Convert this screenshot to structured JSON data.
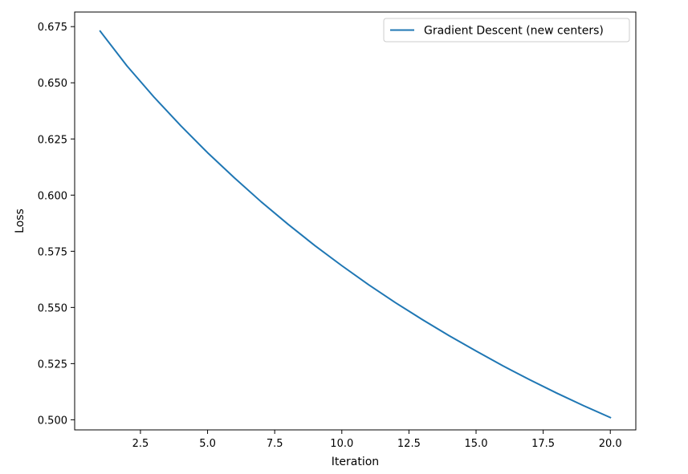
{
  "chart_data": {
    "type": "line",
    "title": "",
    "xlabel": "Iteration",
    "ylabel": "Loss",
    "xlim": [
      0.05,
      20.95
    ],
    "ylim": [
      0.4955,
      0.6815
    ],
    "xticks": [
      2.5,
      5.0,
      7.5,
      10.0,
      12.5,
      15.0,
      17.5,
      20.0
    ],
    "xtick_labels": [
      "2.5",
      "5.0",
      "7.5",
      "10.0",
      "12.5",
      "15.0",
      "17.5",
      "20.0"
    ],
    "yticks": [
      0.5,
      0.525,
      0.55,
      0.575,
      0.6,
      0.625,
      0.65,
      0.675
    ],
    "ytick_labels": [
      "0.500",
      "0.525",
      "0.550",
      "0.575",
      "0.600",
      "0.625",
      "0.650",
      "0.675"
    ],
    "grid": false,
    "legend_position": "upper right",
    "series": [
      {
        "name": "Gradient Descent (new centers)",
        "color": "#1f77b4",
        "x": [
          1,
          2,
          3,
          4,
          5,
          6,
          7,
          8,
          9,
          10,
          11,
          12,
          13,
          14,
          15,
          16,
          17,
          18,
          19,
          20
        ],
        "y": [
          0.673,
          0.6575,
          0.6437,
          0.6309,
          0.6189,
          0.6077,
          0.597,
          0.587,
          0.5775,
          0.5686,
          0.5601,
          0.5521,
          0.5446,
          0.5374,
          0.5306,
          0.524,
          0.5178,
          0.5119,
          0.5063,
          0.501
        ]
      }
    ]
  }
}
